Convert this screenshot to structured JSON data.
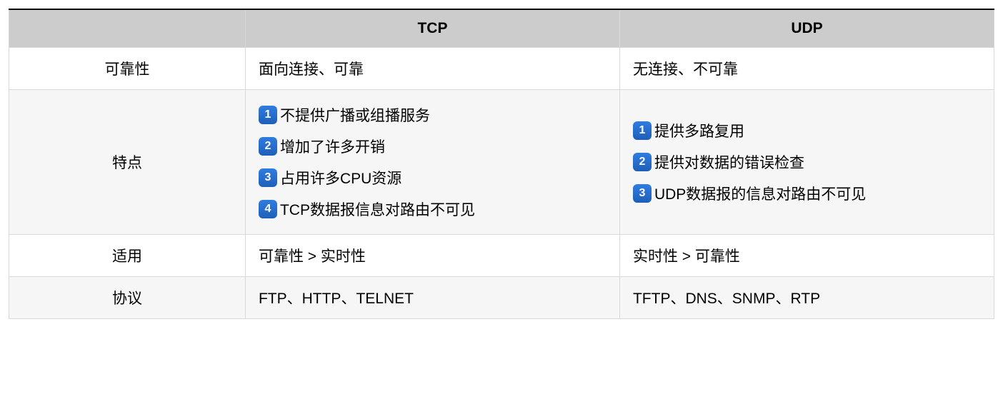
{
  "table": {
    "type": "table",
    "background_color": "#ffffff",
    "alt_row_color": "#f6f6f6",
    "header_color": "#cccccc",
    "border_color": "#d9d9d9",
    "top_border_color": "#000000",
    "font_size": 21,
    "columns": [
      {
        "key": "label",
        "header": "",
        "width_pct": 24,
        "align": "center"
      },
      {
        "key": "tcp",
        "header": "TCP",
        "width_pct": 38,
        "align": "left"
      },
      {
        "key": "udp",
        "header": "UDP",
        "width_pct": 38,
        "align": "left"
      }
    ],
    "badge_colors": {
      "1": "#2f7de1",
      "2": "#2f7de1",
      "3": "#2f7de1",
      "4": "#2f7de1"
    },
    "rows": [
      {
        "label": "可靠性",
        "tcp": "面向连接、可靠",
        "udp": "无连接、不可靠"
      },
      {
        "label": "特点",
        "tcp_items": [
          {
            "n": "1",
            "text": "不提供广播或组播服务"
          },
          {
            "n": "2",
            "text": "增加了许多开销"
          },
          {
            "n": "3",
            "text": "占用许多CPU资源"
          },
          {
            "n": "4",
            "text": "TCP数据报信息对路由不可见"
          }
        ],
        "udp_items": [
          {
            "n": "1",
            "text": "提供多路复用"
          },
          {
            "n": "2",
            "text": "提供对数据的错误检查"
          },
          {
            "n": "3",
            "text": "UDP数据报的信息对路由不可见"
          }
        ]
      },
      {
        "label": "适用",
        "tcp": "可靠性 > 实时性",
        "udp": "实时性 > 可靠性"
      },
      {
        "label": "协议",
        "tcp": "FTP、HTTP、TELNET",
        "udp": "TFTP、DNS、SNMP、RTP"
      }
    ]
  }
}
